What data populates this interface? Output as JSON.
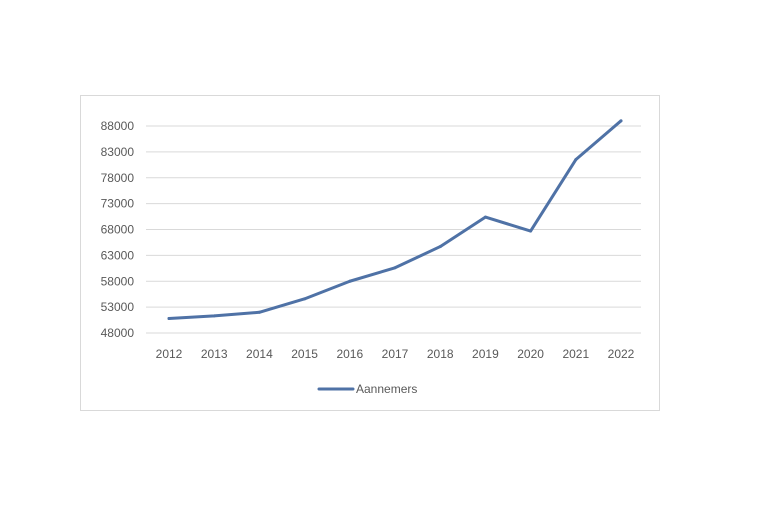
{
  "chart_data": {
    "type": "line",
    "title": "",
    "xlabel": "",
    "ylabel": "",
    "categories": [
      "2012",
      "2013",
      "2014",
      "2015",
      "2016",
      "2017",
      "2018",
      "2019",
      "2020",
      "2021",
      "2022"
    ],
    "series": [
      {
        "name": "Aannemers",
        "color": "#4f72a6",
        "values": [
          50800,
          51300,
          52000,
          54600,
          58000,
          60600,
          64700,
          70400,
          67700,
          81500,
          89000
        ]
      }
    ],
    "ylim": [
      48000,
      88000
    ],
    "yticks": [
      "48000",
      "53000",
      "58000",
      "63000",
      "68000",
      "73000",
      "78000",
      "83000",
      "88000"
    ],
    "grid": true,
    "legend": "bottom"
  }
}
